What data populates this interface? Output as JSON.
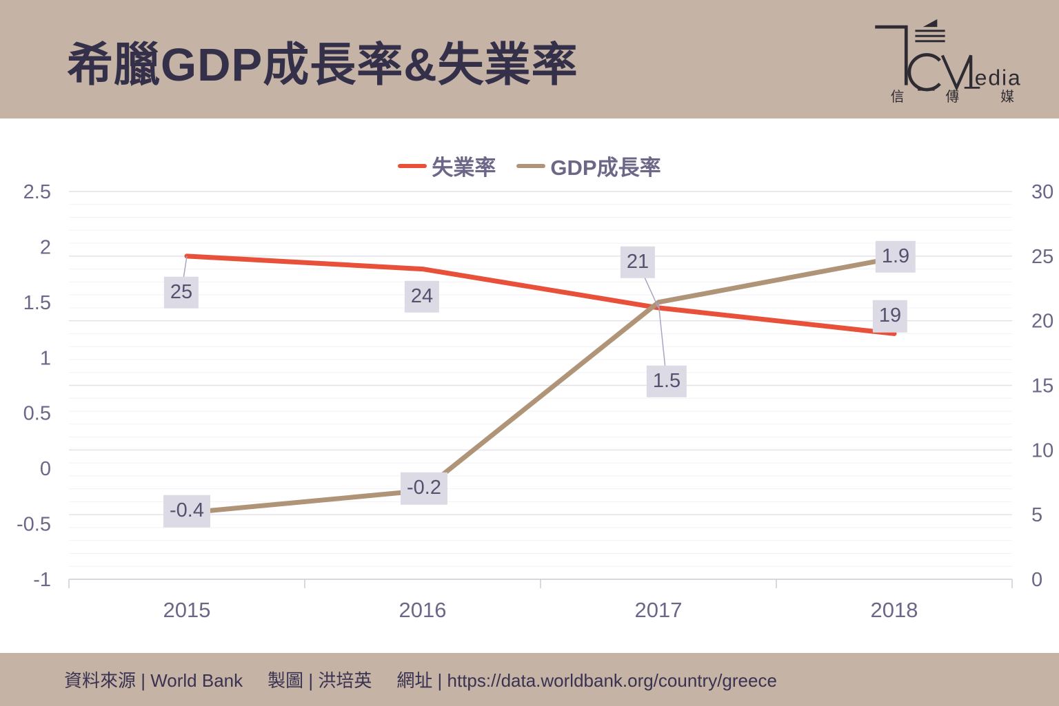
{
  "header": {
    "title": "希臘GDP成長率&失業率",
    "logo": {
      "latin": "edia",
      "cjk": "信傳媒"
    }
  },
  "legend": {
    "items": [
      {
        "label": "失業率",
        "color": "#e8503a"
      },
      {
        "label": "GDP成長率",
        "color": "#b09478"
      }
    ]
  },
  "chart_data": {
    "type": "line",
    "title": "希臘GDP成長率&失業率",
    "categories": [
      "2015",
      "2016",
      "2017",
      "2018"
    ],
    "series": [
      {
        "name": "失業率",
        "axis": "right",
        "color": "#e8503a",
        "values": [
          25,
          24,
          21,
          19
        ],
        "point_labels": [
          {
            "text": "25",
            "dx": -8,
            "dy": 53,
            "leader": true
          },
          {
            "text": "24",
            "dx": -1,
            "dy": 40,
            "leader": false
          },
          {
            "text": "21",
            "dx": -30,
            "dy": -66,
            "leader": true
          },
          {
            "text": "19",
            "dx": -6,
            "dy": -25,
            "leader": false
          }
        ]
      },
      {
        "name": "GDP成長率",
        "axis": "left",
        "color": "#b09478",
        "values": [
          -0.4,
          -0.2,
          1.5,
          1.9
        ],
        "point_labels": [
          {
            "text": "-0.4",
            "dx": 0,
            "dy": -2,
            "leader": false
          },
          {
            "text": "-0.2",
            "dx": 2,
            "dy": -3,
            "leader": false
          },
          {
            "text": "1.5",
            "dx": 12,
            "dy": 115,
            "leader": true
          },
          {
            "text": "1.9",
            "dx": 2,
            "dy": -2,
            "leader": false
          }
        ]
      }
    ],
    "left_axis": {
      "min": -1,
      "max": 2.5,
      "ticks": [
        "2.5",
        "2",
        "1.5",
        "1",
        "0.5",
        "0",
        "-0.5",
        "-1"
      ]
    },
    "right_axis": {
      "min": 0,
      "max": 30,
      "ticks": [
        "30",
        "25",
        "20",
        "15",
        "10",
        "5",
        "0"
      ]
    },
    "grid": {
      "minor_divisions": 30,
      "major_every": 5
    },
    "legend_position": "top"
  },
  "footer": {
    "items": [
      "資料來源 | World Bank",
      "製圖 | 洪培英",
      "網址 | https://data.worldbank.org/country/greece"
    ]
  },
  "colors": {
    "band": "#c5b3a6",
    "title_text": "#343049",
    "axis_text": "#6b6787",
    "gridline_minor": "#f2f1f6",
    "gridline_major": "#e2e1ea",
    "axis_line": "#cfced8",
    "leader_line": "#a8a5c0",
    "label_bg": "#dcdae4",
    "label_text": "#56506f"
  }
}
